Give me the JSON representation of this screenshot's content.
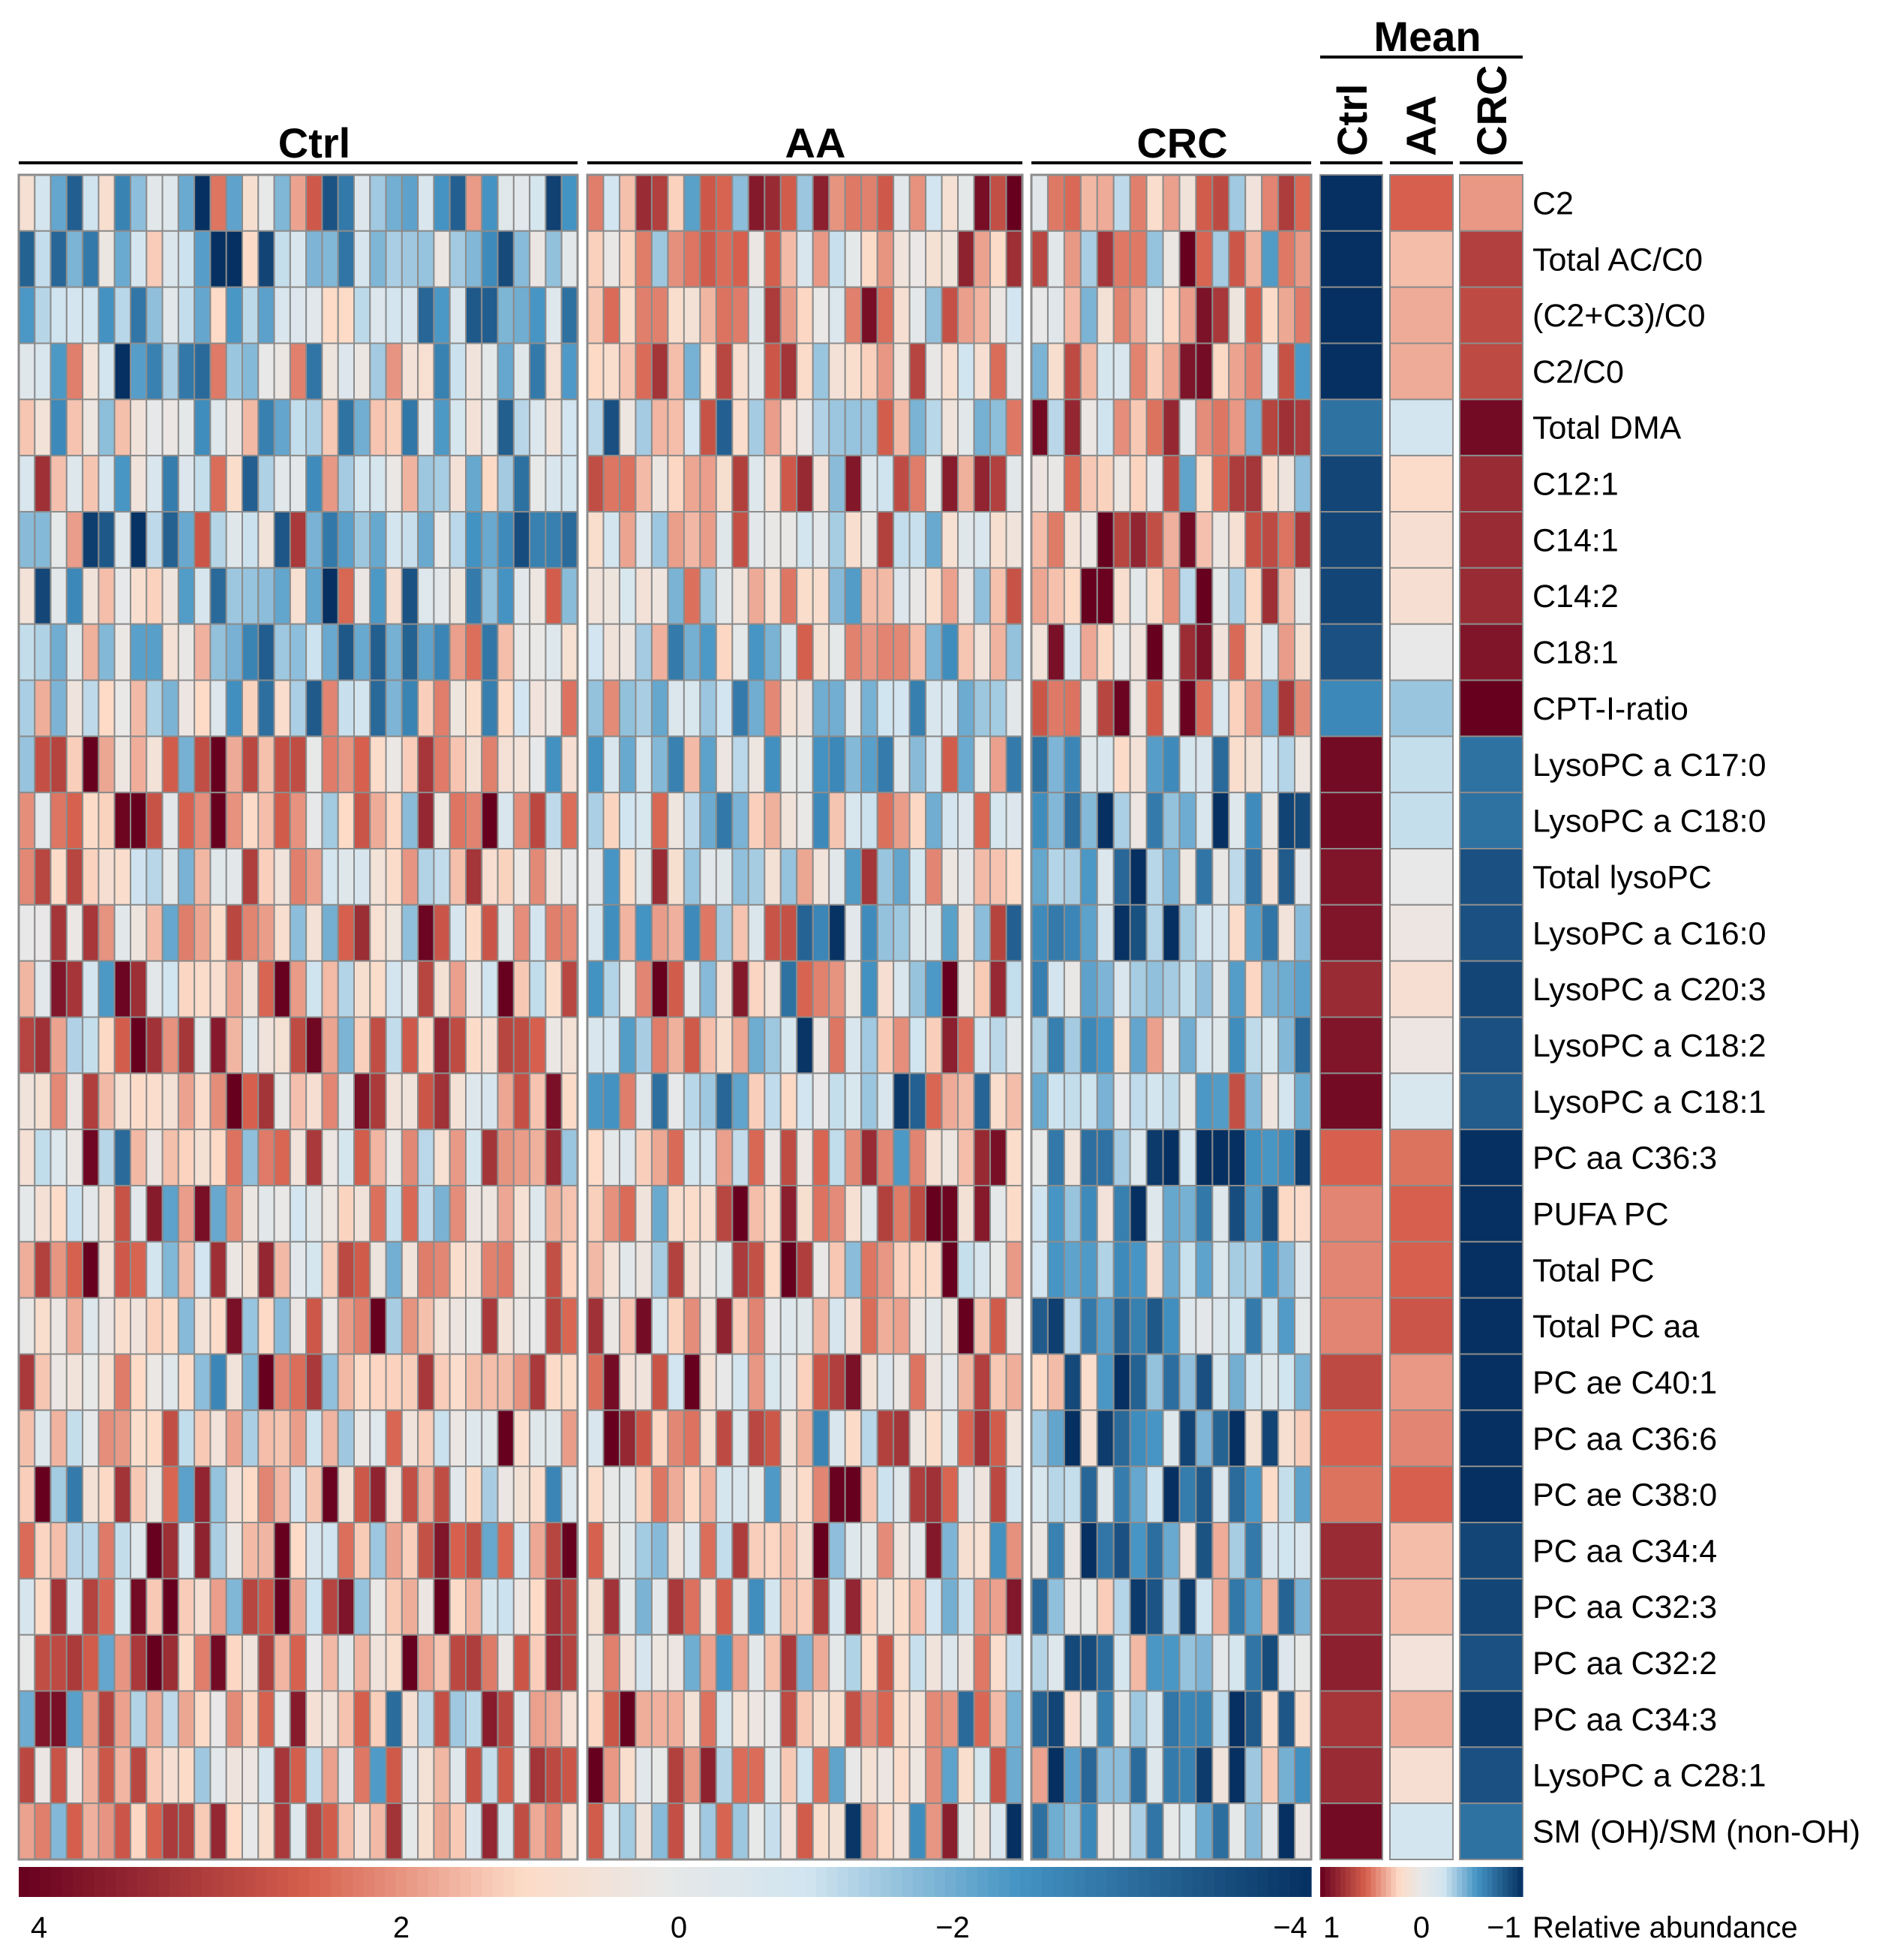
{
  "chart_data": {
    "type": "heatmap",
    "groups": [
      {
        "name": "Ctrl",
        "n_samples": 35
      },
      {
        "name": "AA",
        "n_samples": 27
      },
      {
        "name": "CRC",
        "n_samples": 17
      }
    ],
    "mean_title": "Mean",
    "mean_columns": [
      "Ctrl",
      "AA",
      "CRC"
    ],
    "rows": [
      {
        "label": "C2",
        "mean": [
          -1.0,
          0.55,
          0.4
        ]
      },
      {
        "label": "Total AC/C0",
        "mean": [
          -1.0,
          0.3,
          0.7
        ]
      },
      {
        "label": "(C2+C3)/C0",
        "mean": [
          -1.0,
          0.35,
          0.65
        ]
      },
      {
        "label": "C2/C0",
        "mean": [
          -1.0,
          0.35,
          0.65
        ]
      },
      {
        "label": "Total DMA",
        "mean": [
          -0.7,
          -0.2,
          0.95
        ]
      },
      {
        "label": "C12:1",
        "mean": [
          -0.9,
          0.2,
          0.8
        ]
      },
      {
        "label": "C14:1",
        "mean": [
          -0.9,
          0.15,
          0.8
        ]
      },
      {
        "label": "C14:2",
        "mean": [
          -0.9,
          0.15,
          0.8
        ]
      },
      {
        "label": "C18:1",
        "mean": [
          -0.85,
          0.0,
          0.9
        ]
      },
      {
        "label": "CPT-I-ratio",
        "mean": [
          -0.6,
          -0.35,
          1.0
        ]
      },
      {
        "label": "LysoPC a C17:0",
        "mean": [
          0.95,
          -0.25,
          -0.7
        ]
      },
      {
        "label": "LysoPC a C18:0",
        "mean": [
          0.95,
          -0.25,
          -0.7
        ]
      },
      {
        "label": "Total lysoPC",
        "mean": [
          0.9,
          0.0,
          -0.85
        ]
      },
      {
        "label": "LysoPC a C16:0",
        "mean": [
          0.9,
          0.05,
          -0.85
        ]
      },
      {
        "label": "LysoPC a C20:3",
        "mean": [
          0.8,
          0.15,
          -0.9
        ]
      },
      {
        "label": "LysoPC a C18:2",
        "mean": [
          0.9,
          0.05,
          -0.85
        ]
      },
      {
        "label": "LysoPC a C18:1",
        "mean": [
          0.95,
          -0.15,
          -0.8
        ]
      },
      {
        "label": "PC aa C36:3",
        "mean": [
          0.55,
          0.5,
          -1.0
        ]
      },
      {
        "label": "PUFA PC",
        "mean": [
          0.45,
          0.55,
          -1.0
        ]
      },
      {
        "label": "Total PC",
        "mean": [
          0.45,
          0.55,
          -1.0
        ]
      },
      {
        "label": "Total PC aa",
        "mean": [
          0.45,
          0.6,
          -1.0
        ]
      },
      {
        "label": "PC ae C40:1",
        "mean": [
          0.65,
          0.4,
          -1.0
        ]
      },
      {
        "label": "PC aa C36:6",
        "mean": [
          0.55,
          0.45,
          -1.0
        ]
      },
      {
        "label": "PC ae C38:0",
        "mean": [
          0.5,
          0.55,
          -1.0
        ]
      },
      {
        "label": "PC aa C34:4",
        "mean": [
          0.8,
          0.3,
          -0.9
        ]
      },
      {
        "label": "PC aa C32:3",
        "mean": [
          0.8,
          0.3,
          -0.9
        ]
      },
      {
        "label": "PC aa C32:2",
        "mean": [
          0.85,
          0.1,
          -0.85
        ]
      },
      {
        "label": "PC aa C34:3",
        "mean": [
          0.75,
          0.35,
          -0.95
        ]
      },
      {
        "label": "LysoPC a C28:1",
        "mean": [
          0.8,
          0.15,
          -0.85
        ]
      },
      {
        "label": "SM (OH)/SM (non-OH)",
        "mean": [
          0.95,
          -0.2,
          -0.7
        ]
      }
    ],
    "row_group_tendency": [
      [
        -0.6,
        0.6,
        0.5
      ],
      [
        -0.6,
        0.6,
        0.7
      ],
      [
        -0.6,
        0.6,
        0.7
      ],
      [
        -0.6,
        0.6,
        0.7
      ],
      [
        -0.4,
        -0.1,
        0.9
      ],
      [
        -0.5,
        0.3,
        0.8
      ],
      [
        -0.5,
        0.2,
        0.8
      ],
      [
        -0.5,
        0.2,
        0.8
      ],
      [
        -0.5,
        0.0,
        0.9
      ],
      [
        -0.4,
        -0.3,
        1.0
      ],
      [
        0.8,
        -0.3,
        -0.7
      ],
      [
        0.8,
        -0.3,
        -0.7
      ],
      [
        0.7,
        -0.1,
        -0.9
      ],
      [
        0.7,
        0.0,
        -0.9
      ],
      [
        0.6,
        0.2,
        -0.9
      ],
      [
        0.7,
        0.0,
        -0.9
      ],
      [
        0.8,
        -0.2,
        -0.8
      ],
      [
        0.5,
        0.6,
        -1.1
      ],
      [
        0.4,
        0.7,
        -1.1
      ],
      [
        0.4,
        0.7,
        -1.1
      ],
      [
        0.4,
        0.7,
        -1.1
      ],
      [
        0.6,
        0.5,
        -1.1
      ],
      [
        0.5,
        0.6,
        -1.1
      ],
      [
        0.5,
        0.6,
        -1.1
      ],
      [
        0.7,
        0.4,
        -1.0
      ],
      [
        0.7,
        0.4,
        -1.0
      ],
      [
        0.7,
        0.2,
        -0.9
      ],
      [
        0.6,
        0.4,
        -1.0
      ],
      [
        0.7,
        0.2,
        -0.9
      ],
      [
        0.8,
        -0.2,
        -0.7
      ]
    ],
    "scale_main": {
      "ticks": [
        4,
        2,
        0,
        -2,
        -4
      ],
      "tick_labels": [
        "4",
        "2",
        "0",
        "−2",
        "−4"
      ],
      "range": [
        4,
        -4
      ]
    },
    "scale_mean": {
      "ticks": [
        1,
        0,
        -1
      ],
      "tick_labels": [
        "1",
        "0",
        "−1"
      ],
      "range": [
        1,
        -1
      ]
    },
    "legend_title": "Relative abundance",
    "palette": {
      "high": "#67001f",
      "mid_high": "#d6604d",
      "light_high": "#fddbc7",
      "mid": "#e8e8e8",
      "light_low": "#d1e5f0",
      "mid_low": "#4393c3",
      "low": "#053061"
    },
    "cell_border": "#8c8c8c"
  }
}
